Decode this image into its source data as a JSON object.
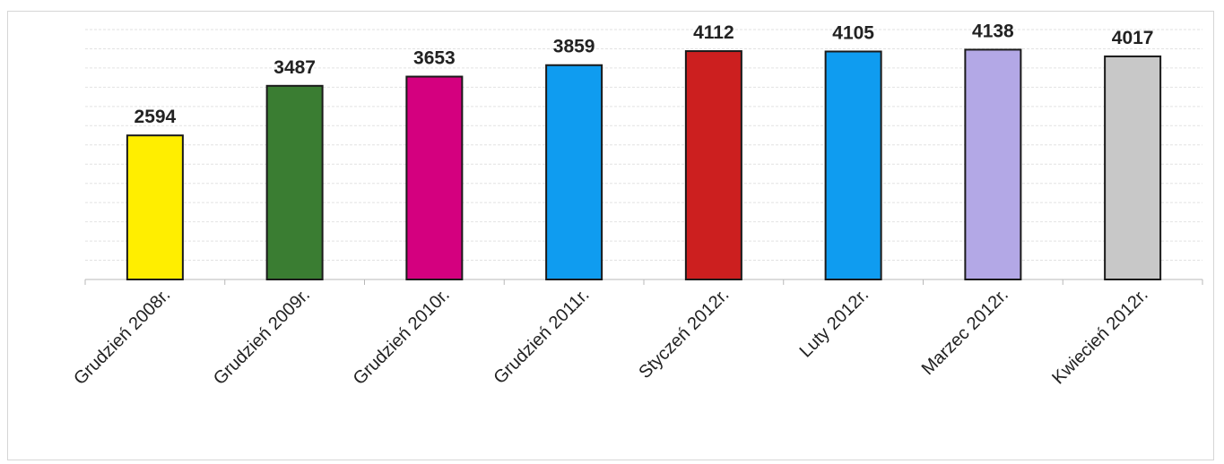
{
  "chart_data": {
    "type": "bar",
    "categories": [
      "Grudzień 2008r.",
      "Grudzień 2009r.",
      "Grudzień 2010r.",
      "Grudzień 2011r.",
      "Styczeń 2012r.",
      "Luty 2012r.",
      "Marzec 2012r.",
      "Kwiecień 2012r."
    ],
    "values": [
      2594,
      3487,
      3653,
      3859,
      4112,
      4105,
      4138,
      4017
    ],
    "colors": [
      "#ffee00",
      "#3a7d32",
      "#d4007f",
      "#0f9cf0",
      "#cc1f1f",
      "#0f9cf0",
      "#b3a8e6",
      "#c8c8c8"
    ],
    "title": "",
    "xlabel": "",
    "ylabel": "",
    "ylim": [
      0,
      4500
    ],
    "grid": true,
    "legend": "none",
    "data_labels": true
  }
}
